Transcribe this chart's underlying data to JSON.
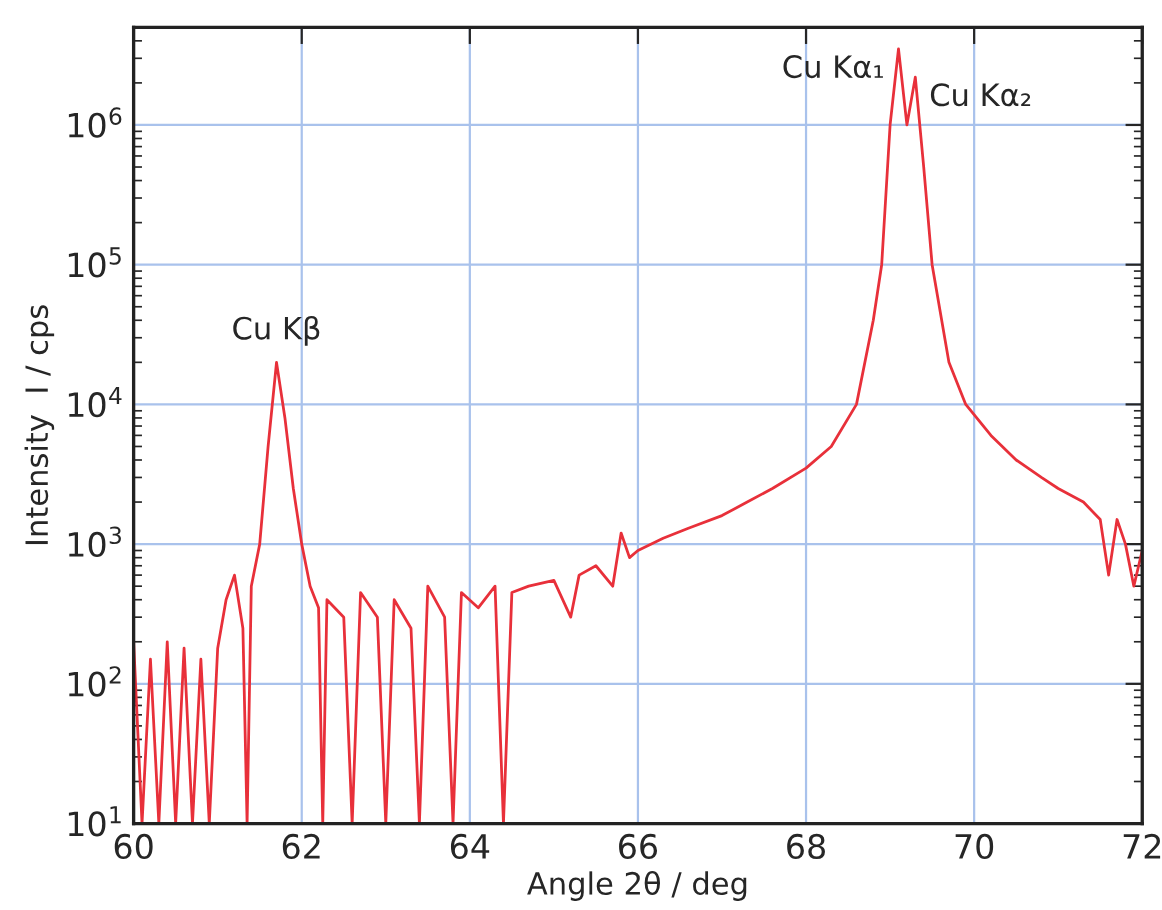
{
  "chart_data": {
    "type": "line",
    "xlabel": "Angle 2θ / deg",
    "ylabel": "Intensity  I / cps",
    "log": "y",
    "grid": true,
    "marker": "none",
    "line_style": "solid",
    "xlim": [
      60,
      72
    ],
    "ylim": [
      10,
      5000000
    ],
    "xticks": [
      60,
      62,
      64,
      66,
      68,
      70,
      72
    ],
    "yticks": [
      {
        "value": 10,
        "label": "10$^{1}$"
      },
      {
        "value": 100,
        "label": "10$^{2}$"
      },
      {
        "value": 1000,
        "label": "10$^{3}$"
      },
      {
        "value": 10000,
        "label": "10$^{4}$"
      },
      {
        "value": 100000,
        "label": "10$^{5}$"
      },
      {
        "value": 1000000,
        "label": "10$^{6}$"
      }
    ],
    "annotations": [
      {
        "text": "Cu Kβ",
        "x": 61.7,
        "y": 20000
      },
      {
        "text": "Cu Kα₁",
        "x": 69.1,
        "y": 3500000
      },
      {
        "text": "Cu Kα₂",
        "x": 69.3,
        "y": 2200000
      }
    ],
    "series": [
      {
        "color": "#e8303a",
        "x": [
          60.0,
          60.1,
          60.2,
          60.3,
          60.4,
          60.5,
          60.6,
          60.7,
          60.8,
          60.9,
          61.0,
          61.1,
          61.2,
          61.3,
          61.35,
          61.4,
          61.5,
          61.6,
          61.7,
          61.8,
          61.9,
          62.0,
          62.1,
          62.2,
          62.25,
          62.3,
          62.5,
          62.6,
          62.7,
          62.9,
          63.0,
          63.1,
          63.3,
          63.4,
          63.5,
          63.7,
          63.8,
          63.9,
          64.1,
          64.3,
          64.4,
          64.5,
          64.7,
          65.0,
          65.2,
          65.3,
          65.5,
          65.7,
          65.8,
          65.9,
          66.0,
          66.3,
          66.6,
          67.0,
          67.3,
          67.6,
          68.0,
          68.3,
          68.6,
          68.8,
          68.9,
          69.0,
          69.1,
          69.2,
          69.3,
          69.4,
          69.5,
          69.7,
          69.9,
          70.2,
          70.5,
          70.8,
          71.0,
          71.3,
          71.5,
          71.6,
          71.7,
          71.8,
          71.9,
          72.0
        ],
        "values": [
          200,
          10,
          150,
          10,
          200,
          10,
          180,
          10,
          150,
          10,
          180,
          400,
          600,
          250,
          10,
          500,
          1000,
          5000,
          20000,
          8000,
          2500,
          1000,
          500,
          350,
          10,
          400,
          300,
          10,
          450,
          300,
          10,
          400,
          250,
          10,
          500,
          300,
          10,
          450,
          350,
          500,
          10,
          450,
          500,
          550,
          300,
          600,
          700,
          500,
          1200,
          800,
          900,
          1100,
          1300,
          1600,
          2000,
          2500,
          3500,
          5000,
          10000,
          40000,
          100000,
          1000000,
          3500000,
          1000000,
          2200000,
          500000,
          100000,
          20000,
          10000,
          6000,
          4000,
          3000,
          2500,
          2000,
          1500,
          600,
          1500,
          1000,
          500,
          900
        ]
      }
    ]
  }
}
